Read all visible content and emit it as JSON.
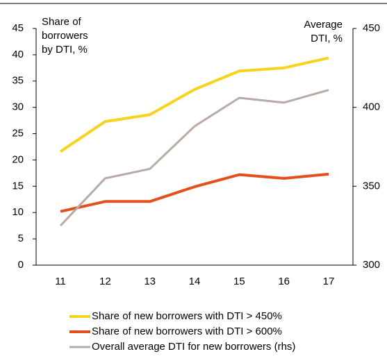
{
  "chart_data": {
    "type": "line",
    "categories": [
      "11",
      "12",
      "13",
      "14",
      "15",
      "16",
      "17"
    ],
    "y_label": [
      "Share of",
      "borrowers",
      "by DTI, %"
    ],
    "y2_label": [
      "Average",
      "DTI, %"
    ],
    "ylim": [
      0,
      45
    ],
    "yticks": [
      0,
      5,
      10,
      15,
      20,
      25,
      30,
      35,
      40,
      45
    ],
    "y2lim": [
      300,
      450
    ],
    "y2ticks": [
      300,
      350,
      400,
      450
    ],
    "series": [
      {
        "name": "Share of new borrowers with DTI > 450%",
        "color": "#f7d31e",
        "values": [
          21.6,
          27.3,
          28.6,
          33.4,
          36.9,
          37.5,
          39.4
        ]
      },
      {
        "name": "Share of new borrowers with DTI > 600%",
        "color": "#e4501c",
        "values": [
          10.2,
          12.1,
          12.1,
          14.9,
          17.2,
          16.5,
          17.3
        ]
      },
      {
        "name": "Overall average DTI for new borrowers (rhs)",
        "color": "#b8aaa4",
        "axis": "y2",
        "values": [
          325,
          355,
          361,
          388,
          406,
          403,
          411
        ]
      }
    ]
  }
}
